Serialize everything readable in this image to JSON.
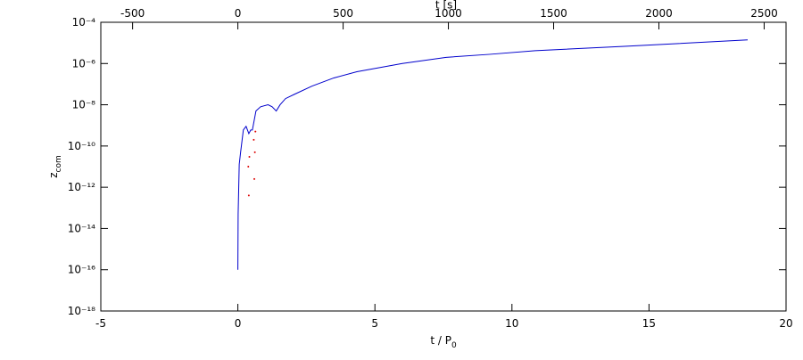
{
  "chart_data": {
    "type": "line",
    "x_label": {
      "text": "t / P",
      "sub": "0"
    },
    "y_label": {
      "text": "z",
      "sub": "com"
    },
    "x2_label": "t [s]",
    "xlim": [
      -5,
      20
    ],
    "xticks": [
      -5,
      0,
      5,
      10,
      15,
      20
    ],
    "x2lim": [
      -651,
      2604
    ],
    "x2ticks": [
      -500,
      0,
      500,
      1000,
      1500,
      2000,
      2500
    ],
    "ylog": true,
    "ylim": [
      1e-18,
      0.0001
    ],
    "yticks": [
      {
        "value": 1e-18,
        "label": "10⁻¹⁸"
      },
      {
        "value": 1e-16,
        "label": "10⁻¹⁶"
      },
      {
        "value": 1e-14,
        "label": "10⁻¹⁴"
      },
      {
        "value": 1e-12,
        "label": "10⁻¹²"
      },
      {
        "value": 1e-10,
        "label": "10⁻¹⁰"
      },
      {
        "value": 1e-08,
        "label": "10⁻⁸"
      },
      {
        "value": 1e-06,
        "label": "10⁻⁶"
      },
      {
        "value": 0.0001,
        "label": "10⁻⁴"
      }
    ],
    "series": [
      {
        "color": "#0000cc",
        "style": "line",
        "x": [
          0,
          0.01,
          0.05,
          0.1,
          0.2,
          0.3,
          0.4,
          0.47,
          0.53,
          0.66,
          0.83,
          1.1,
          1.25,
          1.4,
          1.54,
          1.74,
          2.06,
          2.7,
          3.5,
          4.34,
          6.0,
          7.6,
          9.2,
          10.85,
          14.1,
          18.6
        ],
        "values": [
          1e-16,
          5e-14,
          1.3e-11,
          5e-11,
          6e-10,
          9e-10,
          4e-10,
          6e-10,
          6e-10,
          5e-09,
          8e-09,
          1e-08,
          8e-09,
          5e-09,
          1e-08,
          2e-08,
          3.2e-08,
          8e-08,
          2e-07,
          4e-07,
          1e-06,
          2e-06,
          2.8e-06,
          4.2e-06,
          6.8e-06,
          1.4e-05
        ]
      },
      {
        "color": "#dd0000",
        "style": "points",
        "x": [
          0.38,
          0.4,
          0.42,
          0.58,
          0.6,
          0.62,
          0.64
        ],
        "values": [
          1e-11,
          4e-13,
          3e-11,
          2e-10,
          2.5e-12,
          5e-11,
          5e-10
        ]
      }
    ]
  }
}
